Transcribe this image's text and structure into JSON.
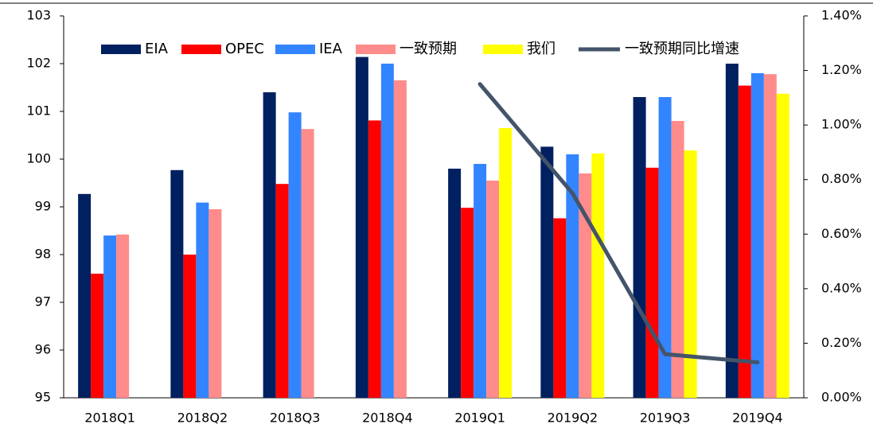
{
  "chart_data": {
    "type": "bar",
    "categories": [
      "2018Q1",
      "2018Q2",
      "2018Q3",
      "2018Q4",
      "2019Q1",
      "2019Q2",
      "2019Q3",
      "2019Q4"
    ],
    "series": [
      {
        "name": "EIA",
        "color": "#002060",
        "values": [
          99.27,
          99.77,
          101.4,
          102.14,
          99.8,
          100.26,
          101.3,
          102.0
        ]
      },
      {
        "name": "OPEC",
        "color": "#ff0000",
        "values": [
          97.6,
          98.0,
          99.48,
          100.81,
          98.98,
          98.76,
          99.82,
          101.54
        ]
      },
      {
        "name": "IEA",
        "color": "#3385ff",
        "values": [
          98.4,
          99.09,
          100.98,
          102.0,
          99.9,
          100.1,
          101.3,
          101.8
        ]
      },
      {
        "name": "一致预期",
        "color": "#ff8b8b",
        "values": [
          98.42,
          98.95,
          100.63,
          101.65,
          99.55,
          99.7,
          100.8,
          101.78
        ]
      },
      {
        "name": "我们",
        "color": "#ffff00",
        "values": [
          null,
          null,
          null,
          null,
          100.65,
          100.12,
          100.18,
          101.37
        ]
      },
      {
        "name": "一致预期同比增速",
        "color": "#44546a",
        "type": "line",
        "axis": "y2",
        "values": [
          null,
          null,
          null,
          null,
          1.15,
          0.75,
          0.16,
          0.13
        ]
      }
    ],
    "ylim": [
      95,
      103
    ],
    "yticks": [
      95,
      96,
      97,
      98,
      99,
      100,
      101,
      102,
      103
    ],
    "y2lim": [
      0,
      1.4
    ],
    "y2ticks": [
      {
        "value": 0,
        "label": "0.00%"
      },
      {
        "value": 0.2,
        "label": "0.20%"
      },
      {
        "value": 0.4,
        "label": "0.40%"
      },
      {
        "value": 0.6,
        "label": "0.60%"
      },
      {
        "value": 0.8,
        "label": "0.80%"
      },
      {
        "value": 1.0,
        "label": "1.00%"
      },
      {
        "value": 1.2,
        "label": "1.20%"
      },
      {
        "value": 1.4,
        "label": "1.40%"
      }
    ],
    "legend": "top",
    "grid": false
  }
}
